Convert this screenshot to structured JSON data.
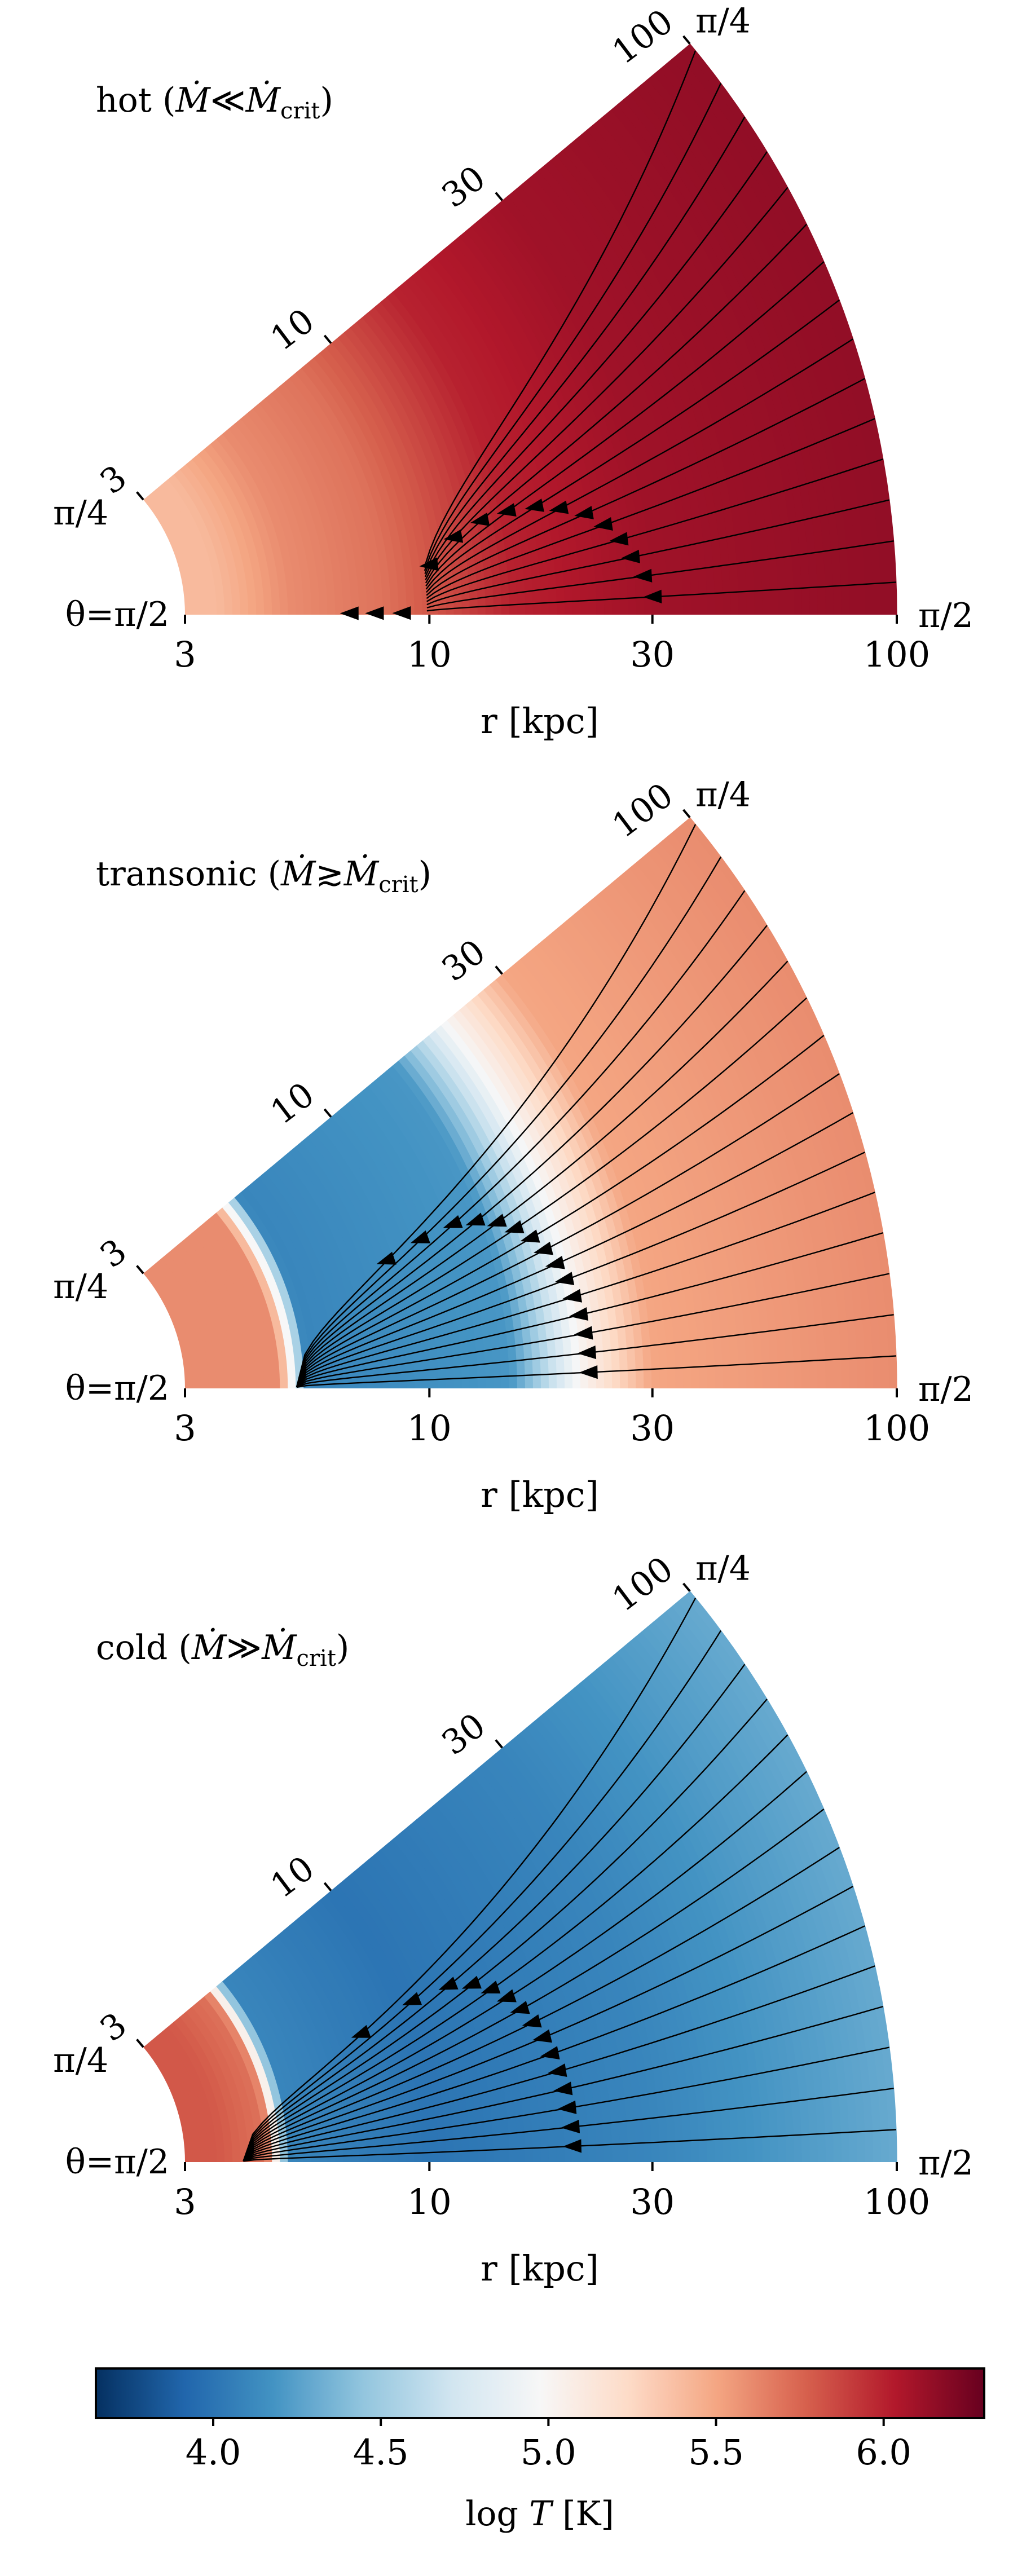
{
  "chart_data": [
    {
      "type": "heatmap",
      "subtype": "polar-wedge",
      "title": "hot (Ṁ≪Ṁcrit)",
      "title_main": "hot (",
      "title_m": "Ṁ",
      "title_rel": "≪",
      "title_mc": "Ṁ",
      "title_sub": "crit",
      "title_end": ")",
      "xlabel": "r [kpc]",
      "x_scale": "log",
      "xlim": [
        3,
        100
      ],
      "xticks": [
        "3",
        "10",
        "30",
        "100"
      ],
      "radial_ticks": [
        "3",
        "10",
        "30",
        "100"
      ],
      "angle_left_labels": [
        "π/4",
        "θ=π/2"
      ],
      "angle_right_labels": [
        "π/4",
        "π/2"
      ],
      "regime": "hot",
      "temperature_profile": [
        {
          "r": 3.5,
          "logT": 5.4
        },
        {
          "r": 5,
          "logT": 5.6
        },
        {
          "r": 8,
          "logT": 5.7
        },
        {
          "r": 10,
          "logT": 5.8
        },
        {
          "r": 15,
          "logT": 6.0
        },
        {
          "r": 30,
          "logT": 6.1
        },
        {
          "r": 100,
          "logT": 6.15
        }
      ],
      "streamline_arrow_r": [
        6.8,
        7.7,
        8.8,
        10.2,
        11.7,
        13.5,
        15.5,
        17.8,
        20.0,
        22.5,
        24.5,
        26.2,
        27.5,
        29.0,
        30.3
      ]
    },
    {
      "type": "heatmap",
      "subtype": "polar-wedge",
      "title": "transonic (Ṁ≳Ṁcrit)",
      "title_main": "transonic (",
      "title_m": "Ṁ",
      "title_rel": "≳",
      "title_mc": "Ṁ",
      "title_sub": "crit",
      "title_end": ")",
      "xlabel": "r [kpc]",
      "x_scale": "log",
      "xlim": [
        3,
        100
      ],
      "xticks": [
        "3",
        "10",
        "30",
        "100"
      ],
      "radial_ticks": [
        "3",
        "10",
        "30",
        "100"
      ],
      "angle_left_labels": [
        "π/4",
        "θ=π/2"
      ],
      "angle_right_labels": [
        "π/4",
        "π/2"
      ],
      "regime": "transonic",
      "temperature_profile": [
        {
          "r": 3.5,
          "logT": 5.6
        },
        {
          "r": 4.8,
          "logT": 5.6
        },
        {
          "r": 5.5,
          "logT": 4.1
        },
        {
          "r": 15,
          "logT": 4.2
        },
        {
          "r": 21,
          "logT": 5.0
        },
        {
          "r": 30,
          "logT": 5.5
        },
        {
          "r": 100,
          "logT": 5.6
        }
      ],
      "streamline_arrow_r": [
        9.0,
        10.9,
        13.0,
        14.5,
        16.0,
        17.2,
        18.3,
        19.2,
        20.0,
        20.6,
        21.1,
        21.5,
        21.8,
        22.0,
        22.1
      ]
    },
    {
      "type": "heatmap",
      "subtype": "polar-wedge",
      "title": "cold (Ṁ≫Ṁcrit)",
      "title_main": "cold (",
      "title_m": "Ṁ",
      "title_rel": "≫",
      "title_mc": "Ṁ",
      "title_sub": "crit",
      "title_end": ")",
      "xlabel": "r [kpc]",
      "x_scale": "log",
      "xlim": [
        3,
        100
      ],
      "xticks": [
        "3",
        "10",
        "30",
        "100"
      ],
      "radial_ticks": [
        "3",
        "10",
        "30",
        "100"
      ],
      "angle_left_labels": [
        "π/4",
        "θ=π/2"
      ],
      "angle_right_labels": [
        "π/4",
        "π/2"
      ],
      "regime": "cold",
      "temperature_profile": [
        {
          "r": 3.5,
          "logT": 5.8
        },
        {
          "r": 4.5,
          "logT": 5.7
        },
        {
          "r": 5,
          "logT": 4.1
        },
        {
          "r": 10,
          "logT": 4.0
        },
        {
          "r": 30,
          "logT": 4.1
        },
        {
          "r": 100,
          "logT": 4.3
        }
      ],
      "streamline_arrow_r": [
        8.0,
        10.7,
        13.0,
        14.5,
        15.7,
        16.7,
        17.5,
        18.2,
        18.8,
        19.2,
        19.6,
        19.9,
        20.1,
        20.3,
        20.4
      ]
    }
  ],
  "colorbar": {
    "label": "log T [K]",
    "label_main": "log ",
    "label_var": "T",
    "label_unit": " [K]",
    "range": [
      3.65,
      6.3
    ],
    "ticks": [
      "4.0",
      "4.5",
      "5.0",
      "5.5",
      "6.0"
    ],
    "tick_values": [
      4.0,
      4.5,
      5.0,
      5.5,
      6.0
    ],
    "colormap": "RdBu_r",
    "colormap_stops": [
      "#053061",
      "#2166ac",
      "#4393c3",
      "#92c5de",
      "#d1e5f0",
      "#f7f7f7",
      "#fddbc7",
      "#f4a582",
      "#d6604d",
      "#b2182b",
      "#67001f"
    ]
  }
}
